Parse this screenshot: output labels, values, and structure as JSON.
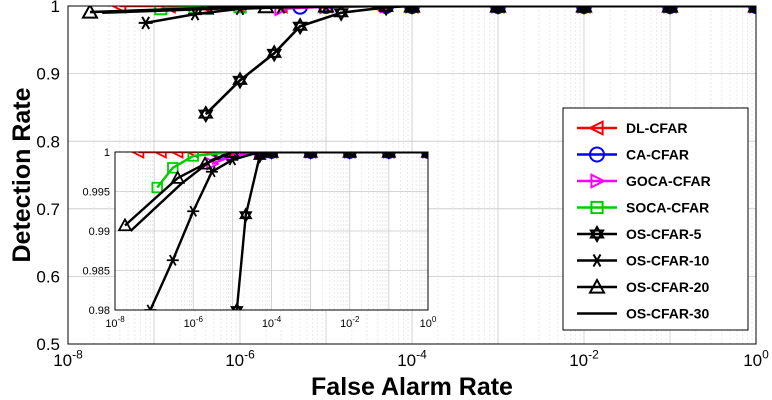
{
  "chart_data": {
    "type": "line",
    "xlabel": "False Alarm Rate",
    "ylabel": "Detection Rate",
    "xscale": "log",
    "xlim": [
      1e-08,
      1
    ],
    "ylim": [
      0.5,
      1
    ],
    "x_ticks": [
      {
        "base": "10",
        "exp": "-8"
      },
      {
        "base": "10",
        "exp": "-6"
      },
      {
        "base": "10",
        "exp": "-4"
      },
      {
        "base": "10",
        "exp": "-2"
      },
      {
        "base": "10",
        "exp": "0"
      }
    ],
    "y_ticks": [
      "0.5",
      "0.6",
      "0.7",
      "0.8",
      "0.9",
      "1"
    ],
    "grid": true,
    "legend_position": "right",
    "series": [
      {
        "name": "DL-CFAR",
        "color": "#ff0000",
        "marker": "triangle-left",
        "x": [
          4e-08,
          1.5e-07,
          4e-07,
          1e-06,
          3e-06,
          1e-05,
          4e-05,
          0.0001,
          0.001,
          0.01,
          0.1,
          1
        ],
        "y": [
          1,
          1,
          1,
          1,
          1,
          1,
          1,
          1,
          1,
          1,
          1,
          1
        ]
      },
      {
        "name": "CA-CFAR",
        "color": "#0000ff",
        "marker": "circle",
        "x": [
          5e-06,
          1e-05,
          5e-05,
          0.0001,
          0.001,
          0.01,
          0.1,
          1
        ],
        "y": [
          0.999,
          1,
          1,
          1,
          1,
          1,
          1,
          1
        ]
      },
      {
        "name": "GOCA-CFAR",
        "color": "#ff00ff",
        "marker": "triangle-right",
        "x": [
          3e-06,
          1e-05,
          5e-05,
          0.0001,
          0.001,
          0.01,
          0.1,
          1
        ],
        "y": [
          0.996,
          0.999,
          1,
          1,
          1,
          1,
          1,
          1
        ]
      },
      {
        "name": "SOCA-CFAR",
        "color": "#00cc00",
        "marker": "square",
        "x": [
          1.2e-07,
          3e-07,
          1e-06,
          1e-05,
          0.0001,
          0.001,
          0.01,
          0.1,
          1
        ],
        "y": [
          0.996,
          0.998,
          0.999,
          1,
          1,
          1,
          1,
          1,
          1
        ]
      },
      {
        "name": "OS-CFAR-5",
        "color": "#000000",
        "marker": "star",
        "x": [
          4e-07,
          1e-06,
          2.5e-06,
          5e-06,
          1.5e-05,
          5e-05,
          0.0001,
          0.001,
          0.01,
          0.1,
          1
        ],
        "y": [
          0.84,
          0.89,
          0.93,
          0.97,
          0.99,
          0.998,
          1,
          1,
          1,
          1,
          1
        ]
      },
      {
        "name": "OS-CFAR-10",
        "color": "#000000",
        "marker": "asterisk",
        "x": [
          8e-08,
          3e-07,
          1e-06,
          3e-06,
          1e-05,
          5e-05,
          0.0001,
          0.001,
          0.01,
          0.1,
          1
        ],
        "y": [
          0.975,
          0.988,
          0.996,
          0.998,
          0.999,
          1,
          1,
          1,
          1,
          1,
          1
        ]
      },
      {
        "name": "OS-CFAR-20",
        "color": "#000000",
        "marker": "triangle-up",
        "x": [
          1.8e-08,
          4e-07,
          2e-06,
          1e-05,
          0.0001,
          0.001,
          0.01,
          0.1,
          1
        ],
        "y": [
          0.991,
          0.997,
          0.999,
          1,
          1,
          1,
          1,
          1,
          1
        ]
      },
      {
        "name": "OS-CFAR-30",
        "color": "#000000",
        "marker": "none",
        "x": [
          2.5e-08,
          5e-07,
          3e-06,
          1e-05,
          0.0001,
          0.001,
          0.01,
          0.1,
          1
        ],
        "y": [
          0.99,
          0.996,
          0.999,
          1,
          1,
          1,
          1,
          1,
          1
        ]
      }
    ],
    "inset": {
      "xscale": "log",
      "xlim": [
        1e-08,
        1
      ],
      "ylim": [
        0.98,
        1
      ],
      "x_ticks": [
        {
          "base": "10",
          "exp": "-8"
        },
        {
          "base": "10",
          "exp": "-6"
        },
        {
          "base": "10",
          "exp": "-4"
        },
        {
          "base": "10",
          "exp": "-2"
        },
        {
          "base": "10",
          "exp": "0"
        }
      ],
      "y_ticks": [
        "0.98",
        "0.985",
        "0.99",
        "0.995",
        "1"
      ],
      "series": [
        {
          "name": "DL-CFAR",
          "x": [
            4e-08,
            1.5e-07,
            4e-07,
            1e-06,
            3e-06,
            1e-05,
            4e-05,
            0.0001,
            0.001,
            0.01,
            0.1,
            1
          ],
          "y": [
            1,
            1,
            1,
            1,
            1,
            1,
            1,
            1,
            1,
            1,
            1,
            1
          ]
        },
        {
          "name": "CA-CFAR",
          "x": [
            5e-06,
            1e-05,
            5e-05,
            0.0001,
            0.001,
            0.01,
            0.1,
            1
          ],
          "y": [
            0.9998,
            1,
            1,
            1,
            1,
            1,
            1,
            1
          ]
        },
        {
          "name": "GOCA-CFAR",
          "x": [
            3e-06,
            1e-05,
            5e-05,
            0.0001,
            0.001,
            0.01,
            0.1,
            1
          ],
          "y": [
            0.9985,
            0.9995,
            1,
            1,
            1,
            1,
            1,
            1
          ]
        },
        {
          "name": "SOCA-CFAR",
          "x": [
            1.2e-07,
            3e-07,
            1e-06,
            1e-05,
            0.0001,
            0.001,
            0.01,
            0.1,
            1
          ],
          "y": [
            0.9955,
            0.998,
            0.9995,
            1,
            1,
            1,
            1,
            1,
            1
          ]
        },
        {
          "name": "OS-CFAR-5",
          "x": [
            1.3e-05,
            2.2e-05,
            5e-05,
            0.0001,
            0.001,
            0.01,
            0.1,
            1
          ],
          "y": [
            0.98,
            0.992,
            0.9995,
            1,
            1,
            1,
            1,
            1
          ]
        },
        {
          "name": "OS-CFAR-10",
          "x": [
            8e-08,
            3e-07,
            1e-06,
            3e-06,
            1e-05,
            5e-05,
            0.0001,
            0.001,
            0.01,
            0.1,
            1
          ],
          "y": [
            0.98,
            0.9863,
            0.9925,
            0.9975,
            0.999,
            1,
            1,
            1,
            1,
            1,
            1
          ]
        },
        {
          "name": "OS-CFAR-20",
          "x": [
            1.8e-08,
            4e-07,
            2e-06,
            1e-05,
            0.0001,
            0.001,
            0.01,
            0.1,
            1
          ],
          "y": [
            0.9907,
            0.9967,
            0.9985,
            1,
            1,
            1,
            1,
            1,
            1
          ]
        },
        {
          "name": "OS-CFAR-30",
          "x": [
            2.5e-08,
            5e-07,
            3e-06,
            1e-05,
            0.0001,
            0.001,
            0.01,
            0.1,
            1
          ],
          "y": [
            0.99,
            0.996,
            0.999,
            1,
            1,
            1,
            1,
            1,
            1
          ]
        }
      ]
    }
  }
}
